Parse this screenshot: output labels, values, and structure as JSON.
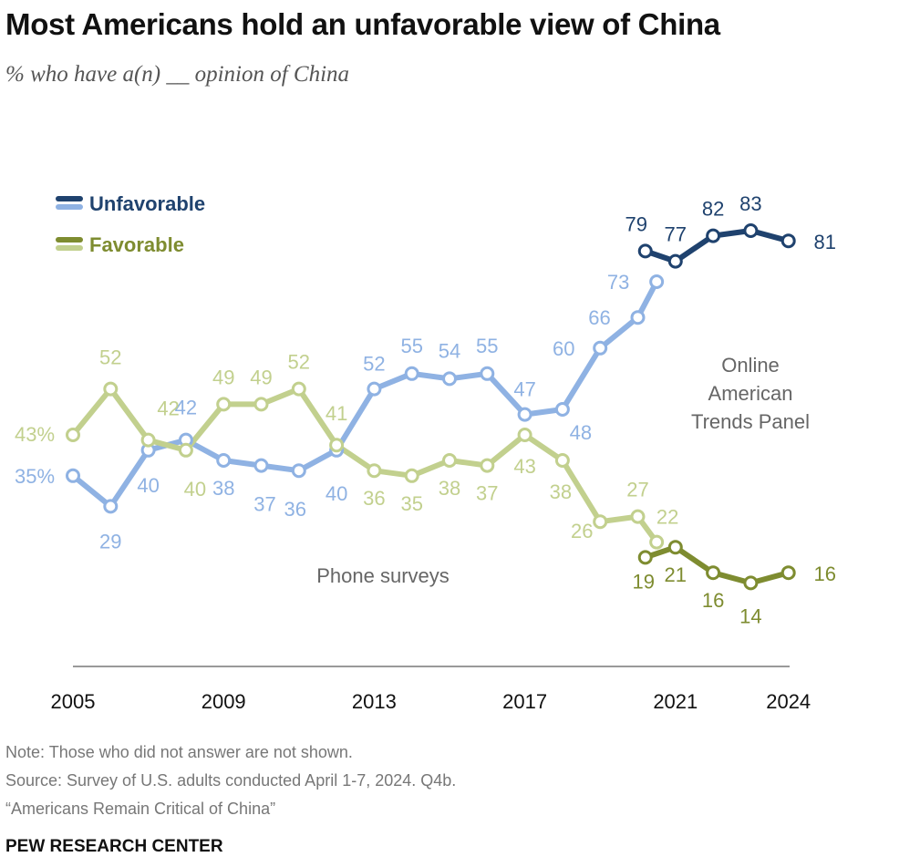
{
  "title": "Most Americans hold an unfavorable view of China",
  "subtitle": "% who have a(n) __ opinion of China",
  "annotations": {
    "phone": "Phone surveys",
    "online": [
      "Online",
      "American",
      "Trends Panel"
    ]
  },
  "notes": {
    "note": "Note: Those who did not answer are not shown.",
    "source": "Source: Survey of U.S. adults conducted April 1-7, 2024. Q4b.",
    "report": "“Americans Remain Critical of China”"
  },
  "brand": "PEW RESEARCH CENTER",
  "colors": {
    "unfav_phone": "#8fb2e3",
    "unfav_online": "#1f426e",
    "fav_phone": "#c2d08e",
    "fav_online": "#7e8c30",
    "axis": "#999999"
  },
  "chart_data": {
    "type": "line",
    "x_ticks": [
      "2005",
      "2009",
      "2013",
      "2017",
      "2021",
      "2024"
    ],
    "legend": [
      {
        "name": "Unfavorable",
        "color_dark": "#1f426e",
        "color_light": "#8fb2e3"
      },
      {
        "name": "Favorable",
        "color_dark": "#7e8c30",
        "color_light": "#c2d08e"
      }
    ],
    "series": [
      {
        "name": "Unfavorable",
        "mode": "Phone surveys",
        "x": [
          2005,
          2006,
          2007,
          2008,
          2009,
          2010,
          2011,
          2012,
          2013,
          2014,
          2015,
          2016,
          2017,
          2018,
          2019,
          2020,
          2020.5
        ],
        "values": [
          35,
          29,
          40,
          42,
          38,
          37,
          36,
          40,
          52,
          55,
          54,
          55,
          47,
          48,
          60,
          66,
          73
        ],
        "labels": [
          "35%",
          "29",
          "40",
          "42",
          "38",
          "37",
          "36",
          "40",
          "52",
          "55",
          "54",
          "55",
          "47",
          "48",
          "60",
          "66",
          "73"
        ]
      },
      {
        "name": "Unfavorable",
        "mode": "Online American Trends Panel",
        "x": [
          2020.2,
          2021,
          2022,
          2023,
          2024
        ],
        "values": [
          79,
          77,
          82,
          83,
          81
        ],
        "labels": [
          "79",
          "77",
          "82",
          "83",
          "81"
        ]
      },
      {
        "name": "Favorable",
        "mode": "Phone surveys",
        "x": [
          2005,
          2006,
          2007,
          2008,
          2009,
          2010,
          2011,
          2012,
          2013,
          2014,
          2015,
          2016,
          2017,
          2018,
          2019,
          2020,
          2020.5
        ],
        "values": [
          43,
          52,
          42,
          40,
          49,
          49,
          52,
          41,
          36,
          35,
          38,
          37,
          43,
          38,
          26,
          27,
          22
        ],
        "labels": [
          "43%",
          "52",
          "42",
          "40",
          "49",
          "49",
          "52",
          "41",
          "36",
          "35",
          "38",
          "37",
          "43",
          "38",
          "26",
          "27",
          "22"
        ]
      },
      {
        "name": "Favorable",
        "mode": "Online American Trends Panel",
        "x": [
          2020.2,
          2021,
          2022,
          2023,
          2024
        ],
        "values": [
          19,
          21,
          16,
          14,
          16
        ],
        "labels": [
          "19",
          "21",
          "16",
          "14",
          "16"
        ]
      }
    ]
  }
}
